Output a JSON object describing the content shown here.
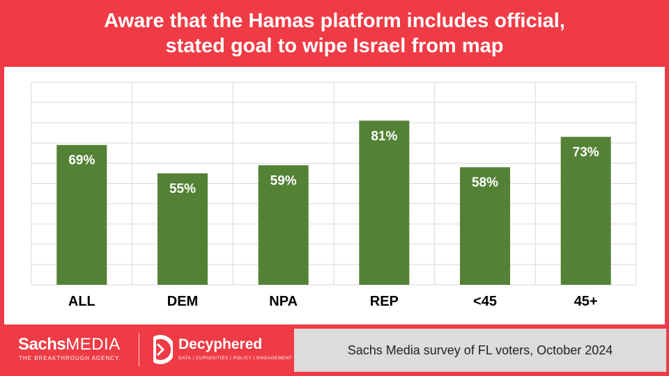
{
  "title": {
    "line1": "Aware that the Hamas platform includes official,",
    "line2": "stated goal to wipe Israel from map"
  },
  "chart_data": {
    "type": "bar",
    "categories": [
      "ALL",
      "DEM",
      "NPA",
      "REP",
      "<45",
      "45+"
    ],
    "values": [
      69,
      55,
      59,
      81,
      58,
      73
    ],
    "value_labels": [
      "69%",
      "55%",
      "59%",
      "81%",
      "58%",
      "73%"
    ],
    "xlabel": "",
    "ylabel": "",
    "ylim": [
      0,
      100
    ],
    "grid": true,
    "legend": "none",
    "bar_color": "#538135",
    "label_color": "#ffffff"
  },
  "footer": {
    "brand_bold": "Sachs",
    "brand_light": "MEDIA",
    "brand_tagline": "THE BREAKTHROUGH AGENCY.",
    "partner_name": "Decyphered",
    "partner_tagline": "DATA | CURIOSITIES | POLICY | ENGAGEMENT",
    "source": "Sachs Media survey of FL voters, October 2024"
  },
  "colors": {
    "background": "#ef3b45",
    "panel": "#ffffff",
    "source_box": "#dcdcdc",
    "grid": "#d9d9d9"
  }
}
